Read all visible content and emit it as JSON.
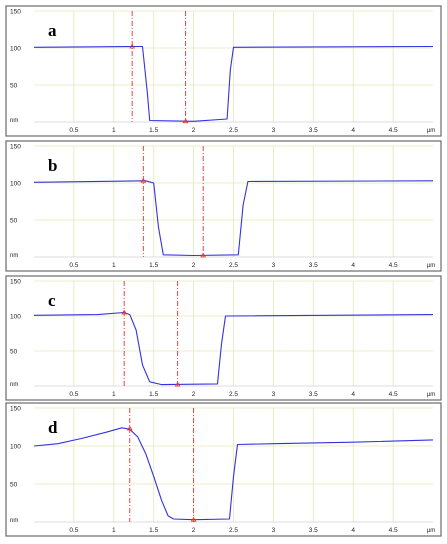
{
  "chart_data": [
    {
      "type": "line",
      "panel_label": "a",
      "xlim": [
        0,
        5
      ],
      "ylim": [
        0,
        150
      ],
      "x_ticks": [
        0.5,
        1,
        1.5,
        2,
        2.5,
        3,
        3.5,
        4,
        4.5
      ],
      "x_tick_labels": [
        "0.5",
        "1",
        "1.5",
        "2",
        "2.5",
        "3",
        "3.5",
        "4",
        "4.5"
      ],
      "x_unit": "µm",
      "y_ticks": [
        50,
        100,
        150
      ],
      "y_tick_labels": [
        "50",
        "100",
        "150"
      ],
      "y_unit": "nm",
      "grid": true,
      "series": [
        {
          "x": [
            0,
            1.3,
            1.36,
            1.42,
            1.45,
            2.0,
            2.42,
            2.46,
            2.5,
            5.0
          ],
          "y": [
            101,
            102,
            102,
            40,
            2,
            1,
            4,
            70,
            101,
            102
          ]
        }
      ],
      "markers": [
        {
          "x": 1.23,
          "y": 102
        },
        {
          "x": 1.9,
          "y": 1
        }
      ],
      "colors": {
        "line": "#3333dd",
        "marker": "#e8302a",
        "grid": "#e6e6b8",
        "frame": "#6a6a6a"
      }
    },
    {
      "type": "line",
      "panel_label": "b",
      "xlim": [
        0,
        5
      ],
      "ylim": [
        0,
        150
      ],
      "x_ticks": [
        0.5,
        1,
        1.5,
        2,
        2.5,
        3,
        3.5,
        4,
        4.5
      ],
      "x_tick_labels": [
        "0.5",
        "1",
        "1.5",
        "2",
        "2.5",
        "3",
        "3.5",
        "4",
        "4.5"
      ],
      "x_unit": "µm",
      "y_ticks": [
        50,
        100,
        150
      ],
      "y_tick_labels": [
        "50",
        "100",
        "150"
      ],
      "y_unit": "nm",
      "grid": true,
      "series": [
        {
          "x": [
            0,
            1.4,
            1.5,
            1.56,
            1.62,
            2.0,
            2.56,
            2.62,
            2.68,
            5.0
          ],
          "y": [
            101,
            103,
            100,
            40,
            3,
            2,
            3,
            70,
            102,
            103
          ]
        }
      ],
      "markers": [
        {
          "x": 1.37,
          "y": 103
        },
        {
          "x": 2.12,
          "y": 2
        }
      ],
      "colors": {
        "line": "#3333dd",
        "marker": "#e8302a",
        "grid": "#e6e6b8",
        "frame": "#6a6a6a"
      }
    },
    {
      "type": "line",
      "panel_label": "c",
      "xlim": [
        0,
        5
      ],
      "ylim": [
        0,
        150
      ],
      "x_ticks": [
        0.5,
        1,
        1.5,
        2,
        2.5,
        3,
        3.5,
        4,
        4.5
      ],
      "x_tick_labels": [
        "0.5",
        "1",
        "1.5",
        "2",
        "2.5",
        "3",
        "3.5",
        "4",
        "4.5"
      ],
      "x_unit": "µm",
      "y_ticks": [
        50,
        100,
        150
      ],
      "y_tick_labels": [
        "50",
        "100",
        "150"
      ],
      "y_unit": "nm",
      "grid": true,
      "series": [
        {
          "x": [
            0,
            0.8,
            1.13,
            1.2,
            1.28,
            1.36,
            1.45,
            1.6,
            2.3,
            2.35,
            2.4,
            5.0
          ],
          "y": [
            101,
            102,
            105,
            102,
            80,
            30,
            6,
            2,
            3,
            60,
            100,
            102
          ]
        }
      ],
      "markers": [
        {
          "x": 1.13,
          "y": 105
        },
        {
          "x": 1.8,
          "y": 2
        }
      ],
      "colors": {
        "line": "#3333dd",
        "marker": "#e8302a",
        "grid": "#e6e6b8",
        "frame": "#6a6a6a"
      }
    },
    {
      "type": "line",
      "panel_label": "d",
      "xlim": [
        0,
        5
      ],
      "ylim": [
        0,
        150
      ],
      "x_ticks": [
        0.5,
        1,
        1.5,
        2,
        2.5,
        3,
        3.5,
        4,
        4.5
      ],
      "x_tick_labels": [
        "0.5",
        "1",
        "1.5",
        "2",
        "2.5",
        "3",
        "3.5",
        "4",
        "4.5"
      ],
      "x_unit": "µm",
      "y_ticks": [
        50,
        100,
        150
      ],
      "y_tick_labels": [
        "50",
        "100",
        "150"
      ],
      "y_unit": "nm",
      "grid": true,
      "series": [
        {
          "x": [
            0,
            0.3,
            0.6,
            0.9,
            1.1,
            1.2,
            1.3,
            1.4,
            1.5,
            1.6,
            1.68,
            1.75,
            2.0,
            2.45,
            2.5,
            2.55,
            3.0,
            4.0,
            5.0
          ],
          "y": [
            100,
            103,
            110,
            118,
            124,
            122,
            112,
            90,
            60,
            28,
            8,
            4,
            3,
            4,
            60,
            102,
            103,
            105,
            108
          ]
        }
      ],
      "markers": [
        {
          "x": 1.2,
          "y": 123
        },
        {
          "x": 2.0,
          "y": 3
        }
      ],
      "colors": {
        "line": "#3333dd",
        "marker": "#e8302a",
        "grid": "#e6e6b8",
        "frame": "#6a6a6a"
      }
    }
  ]
}
